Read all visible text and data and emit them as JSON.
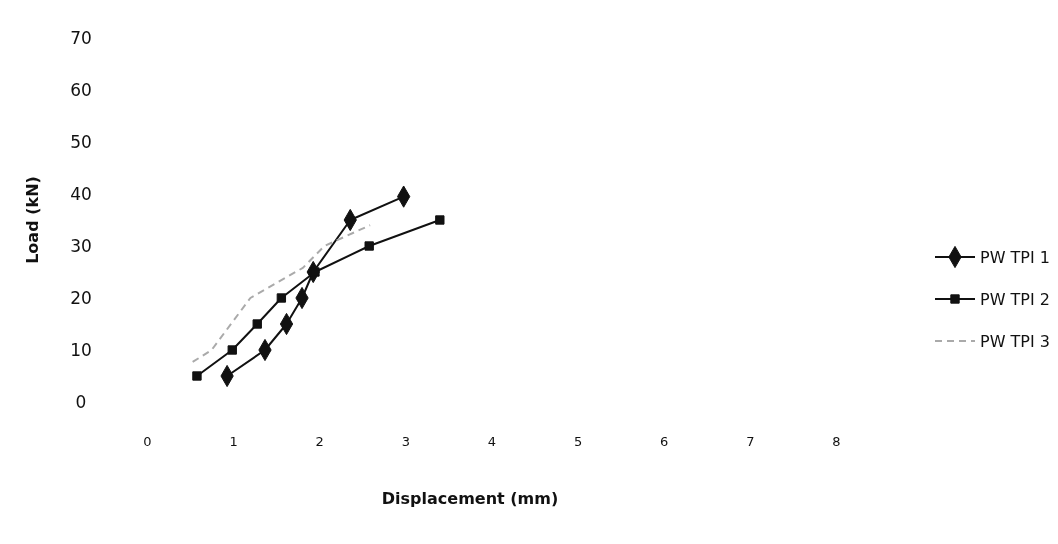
{
  "chart_data": {
    "type": "line",
    "xlabel": "Displacement (mm)",
    "ylabel": "Load (kN)",
    "xlim": [
      0,
      8
    ],
    "ylim": [
      0,
      70
    ],
    "xticks": [
      0,
      1,
      2,
      3,
      4,
      5,
      6,
      7,
      8
    ],
    "yticks": [
      0,
      10,
      20,
      30,
      40,
      50,
      60,
      70
    ],
    "grid": false,
    "legend": "right",
    "series": [
      {
        "name": "PW TPI 1",
        "color": "#111111",
        "marker": "diamond",
        "line_style": "solid",
        "x": [
          0.93,
          1.37,
          1.62,
          1.8,
          1.93,
          2.36,
          2.98
        ],
        "values": [
          5,
          10,
          15,
          20,
          25,
          35,
          39.5
        ]
      },
      {
        "name": "PW TPI 2",
        "color": "#111111",
        "marker": "square",
        "line_style": "solid",
        "x": [
          0.58,
          0.99,
          1.28,
          1.56,
          1.95,
          2.58,
          3.4
        ],
        "values": [
          5,
          10,
          15,
          20,
          25,
          30,
          35
        ]
      },
      {
        "name": "PW TPI 3",
        "color": "#aaaaaa",
        "marker": "none",
        "line_style": "dashed",
        "x": [
          0.53,
          0.75,
          1.2,
          1.81,
          2.06,
          2.59
        ],
        "values": [
          7.7,
          10,
          20,
          25.8,
          30,
          34
        ]
      }
    ]
  }
}
